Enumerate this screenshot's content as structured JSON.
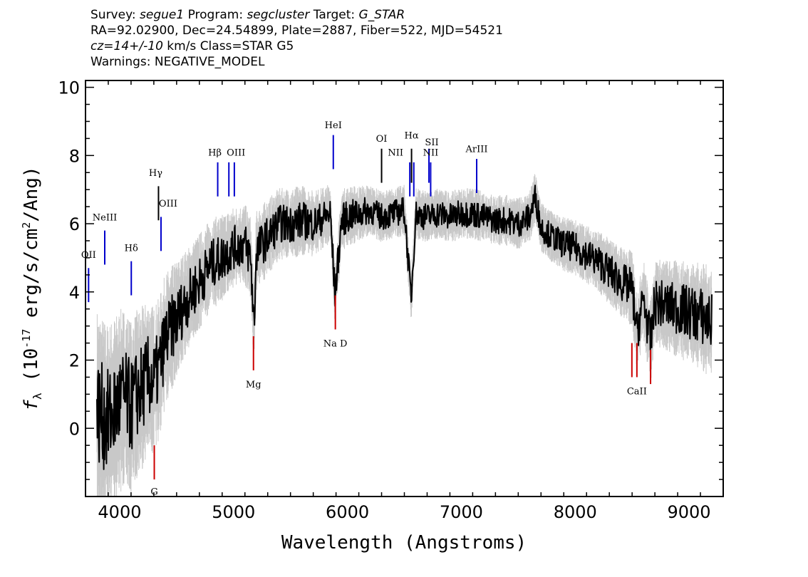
{
  "header": {
    "line1": {
      "survey_label": "Survey: ",
      "survey": "segue1",
      "program_label": " Program: ",
      "program": "segcluster",
      "target_label": " Target: ",
      "target": "G_STAR"
    },
    "line2": "RA=92.02900, Dec=24.54899, Plate=2887, Fiber=522, MJD=54521",
    "line3": {
      "cz": "cz=14+/-10",
      "rest": " km/s Class=STAR G5"
    },
    "line4": "Warnings: NEGATIVE_MODEL"
  },
  "chart_data": {
    "type": "line",
    "xlabel": "Wavelength (Angstroms)",
    "ylabel_parts": {
      "f": "f",
      "sub": "λ",
      "pre": " (10",
      "exp1": "-17",
      "mid": " erg/s/cm",
      "exp2": "2",
      "post": "/Ang)"
    },
    "xlim": [
      3700,
      9300
    ],
    "ylim": [
      -2,
      10.2
    ],
    "xticks": [
      4000,
      5000,
      6000,
      7000,
      8000,
      9000
    ],
    "yticks": [
      0,
      2,
      4,
      6,
      8,
      10
    ],
    "series": [
      {
        "role": "flux",
        "color": "#000000",
        "x": [
          3800,
          3900,
          4000,
          4050,
          4100,
          4150,
          4200,
          4250,
          4300,
          4350,
          4400,
          4500,
          4600,
          4700,
          4800,
          4900,
          5000,
          5100,
          5150,
          5180,
          5200,
          5300,
          5400,
          5500,
          5600,
          5700,
          5800,
          5850,
          5890,
          5950,
          6000,
          6100,
          6200,
          6300,
          6400,
          6500,
          6560,
          6600,
          6700,
          6800,
          6900,
          7000,
          7100,
          7200,
          7300,
          7400,
          7500,
          7600,
          7650,
          7700,
          7800,
          7900,
          8000,
          8100,
          8200,
          8300,
          8400,
          8500,
          8542,
          8600,
          8662,
          8700,
          8800,
          8900,
          9000,
          9100,
          9200
        ],
        "y": [
          0.5,
          0.2,
          0.8,
          0.9,
          0.6,
          1.0,
          1.2,
          1.5,
          1.4,
          1.8,
          2.6,
          3.2,
          3.8,
          4.3,
          4.8,
          5.0,
          5.3,
          5.4,
          5.0,
          3.0,
          5.2,
          5.6,
          6.0,
          6.0,
          6.1,
          6.0,
          6.2,
          6.3,
          3.9,
          6.1,
          6.2,
          6.3,
          6.4,
          6.2,
          6.3,
          6.4,
          3.8,
          6.3,
          6.2,
          6.3,
          6.2,
          6.3,
          6.3,
          6.2,
          6.1,
          6.1,
          6.0,
          6.2,
          6.8,
          5.9,
          5.6,
          5.4,
          5.3,
          5.1,
          4.9,
          4.6,
          4.3,
          4.1,
          2.8,
          3.8,
          2.5,
          3.7,
          3.6,
          3.5,
          3.4,
          3.3,
          3.1
        ]
      },
      {
        "role": "error",
        "color": "#c8c8c8",
        "x": [
          3800,
          4000,
          4200,
          4400,
          4600,
          4800,
          5000,
          5200,
          5400,
          5600,
          5800,
          6000,
          6200,
          6400,
          6600,
          6800,
          7000,
          7200,
          7400,
          7600,
          7800,
          8000,
          8200,
          8400,
          8600,
          8800,
          9000,
          9200
        ],
        "y": [
          2.0,
          1.8,
          1.6,
          1.3,
          1.0,
          0.9,
          0.8,
          0.8,
          0.7,
          0.7,
          0.6,
          0.6,
          0.5,
          0.5,
          0.5,
          0.5,
          0.5,
          0.5,
          0.5,
          0.5,
          0.5,
          0.55,
          0.6,
          0.7,
          0.8,
          0.9,
          1.0,
          1.1
        ]
      }
    ],
    "emission_lines": [
      {
        "label": "OII",
        "x": 3727,
        "y1": 3.7,
        "y2": 4.7,
        "label_y": 5.0,
        "color": "#0000cc",
        "label_dx": 0
      },
      {
        "label": "NeIII",
        "x": 3869,
        "y1": 4.8,
        "y2": 5.8,
        "label_y": 6.1,
        "color": "#0000cc",
        "label_dx": 0
      },
      {
        "label": "Hδ",
        "x": 4102,
        "y1": 3.9,
        "y2": 4.9,
        "label_y": 5.2,
        "color": "#0000cc",
        "label_dx": 0
      },
      {
        "label": "Hγ",
        "x": 4341,
        "y1": 6.1,
        "y2": 7.1,
        "label_y": 7.4,
        "color": "#000000",
        "label_dx": -4
      },
      {
        "label": "OIII",
        "x": 4363,
        "y1": 5.2,
        "y2": 6.2,
        "label_y": 6.5,
        "color": "#0000cc",
        "label_dx": 10
      },
      {
        "label": "Hβ",
        "x": 4861,
        "y1": 6.8,
        "y2": 7.8,
        "label_y": 8.0,
        "color": "#0000cc",
        "label_dx": -4
      },
      {
        "label": "OIII",
        "x": 4959,
        "y1": 6.8,
        "y2": 7.8,
        "label_y": 8.0,
        "color": "#0000cc",
        "label_dx": 10
      },
      {
        "label": "OIII",
        "x": 5007,
        "y1": 6.8,
        "y2": 7.8,
        "label_y": 8.0,
        "color": "#0000cc",
        "label_dx": 0,
        "hide_label": true
      },
      {
        "label": "HeI",
        "x": 5876,
        "y1": 7.6,
        "y2": 8.6,
        "label_y": 8.8,
        "color": "#0000cc",
        "label_dx": 0
      },
      {
        "label": "OI",
        "x": 6300,
        "y1": 7.2,
        "y2": 8.2,
        "label_y": 8.4,
        "color": "#000000",
        "label_dx": 0
      },
      {
        "label": "NII",
        "x": 6548,
        "y1": 6.8,
        "y2": 7.8,
        "label_y": 8.0,
        "color": "#0000cc",
        "label_dx": -20
      },
      {
        "label": "Hα",
        "x": 6563,
        "y1": 7.2,
        "y2": 8.2,
        "label_y": 8.5,
        "color": "#000000",
        "label_dx": 0
      },
      {
        "label": "NII",
        "x": 6583,
        "y1": 6.8,
        "y2": 7.8,
        "label_y": 8.0,
        "color": "#0000cc",
        "label_dx": 0,
        "hide_label": true
      },
      {
        "label": "SII",
        "x": 6716,
        "y1": 7.2,
        "y2": 8.2,
        "label_y": 8.3,
        "color": "#0000cc",
        "label_dx": 4
      },
      {
        "label": "NII",
        "x": 6731,
        "y1": 6.8,
        "y2": 7.8,
        "label_y": 8.0,
        "color": "#0000cc",
        "label_dx": 0
      },
      {
        "label": "ArIII",
        "x": 7135,
        "y1": 6.9,
        "y2": 7.9,
        "label_y": 8.1,
        "color": "#0000cc",
        "label_dx": 0
      }
    ],
    "absorption_lines": [
      {
        "label": "G",
        "x": 4304,
        "y1": -1.5,
        "y2": -0.5,
        "label_y": -1.95,
        "color": "#cc0000",
        "label_dx": 0
      },
      {
        "label": "Mg",
        "x": 5175,
        "y1": 1.7,
        "y2": 2.7,
        "label_y": 1.2,
        "color": "#cc0000",
        "label_dx": 0
      },
      {
        "label": "Na D",
        "x": 5894,
        "y1": 2.9,
        "y2": 3.9,
        "label_y": 2.4,
        "color": "#cc0000",
        "label_dx": 0
      },
      {
        "label": "CaII",
        "x": 8498,
        "y1": 1.5,
        "y2": 2.5,
        "label_y": 1.0,
        "color": "#cc0000",
        "label_dx": 0,
        "hide_label": true
      },
      {
        "label": "CaII",
        "x": 8542,
        "y1": 1.5,
        "y2": 2.5,
        "label_y": 1.0,
        "color": "#cc0000",
        "label_dx": 0
      },
      {
        "label": "CaII",
        "x": 8662,
        "y1": 1.3,
        "y2": 2.3,
        "label_y": 1.0,
        "color": "#cc0000",
        "label_dx": 0,
        "hide_label": true
      }
    ]
  }
}
